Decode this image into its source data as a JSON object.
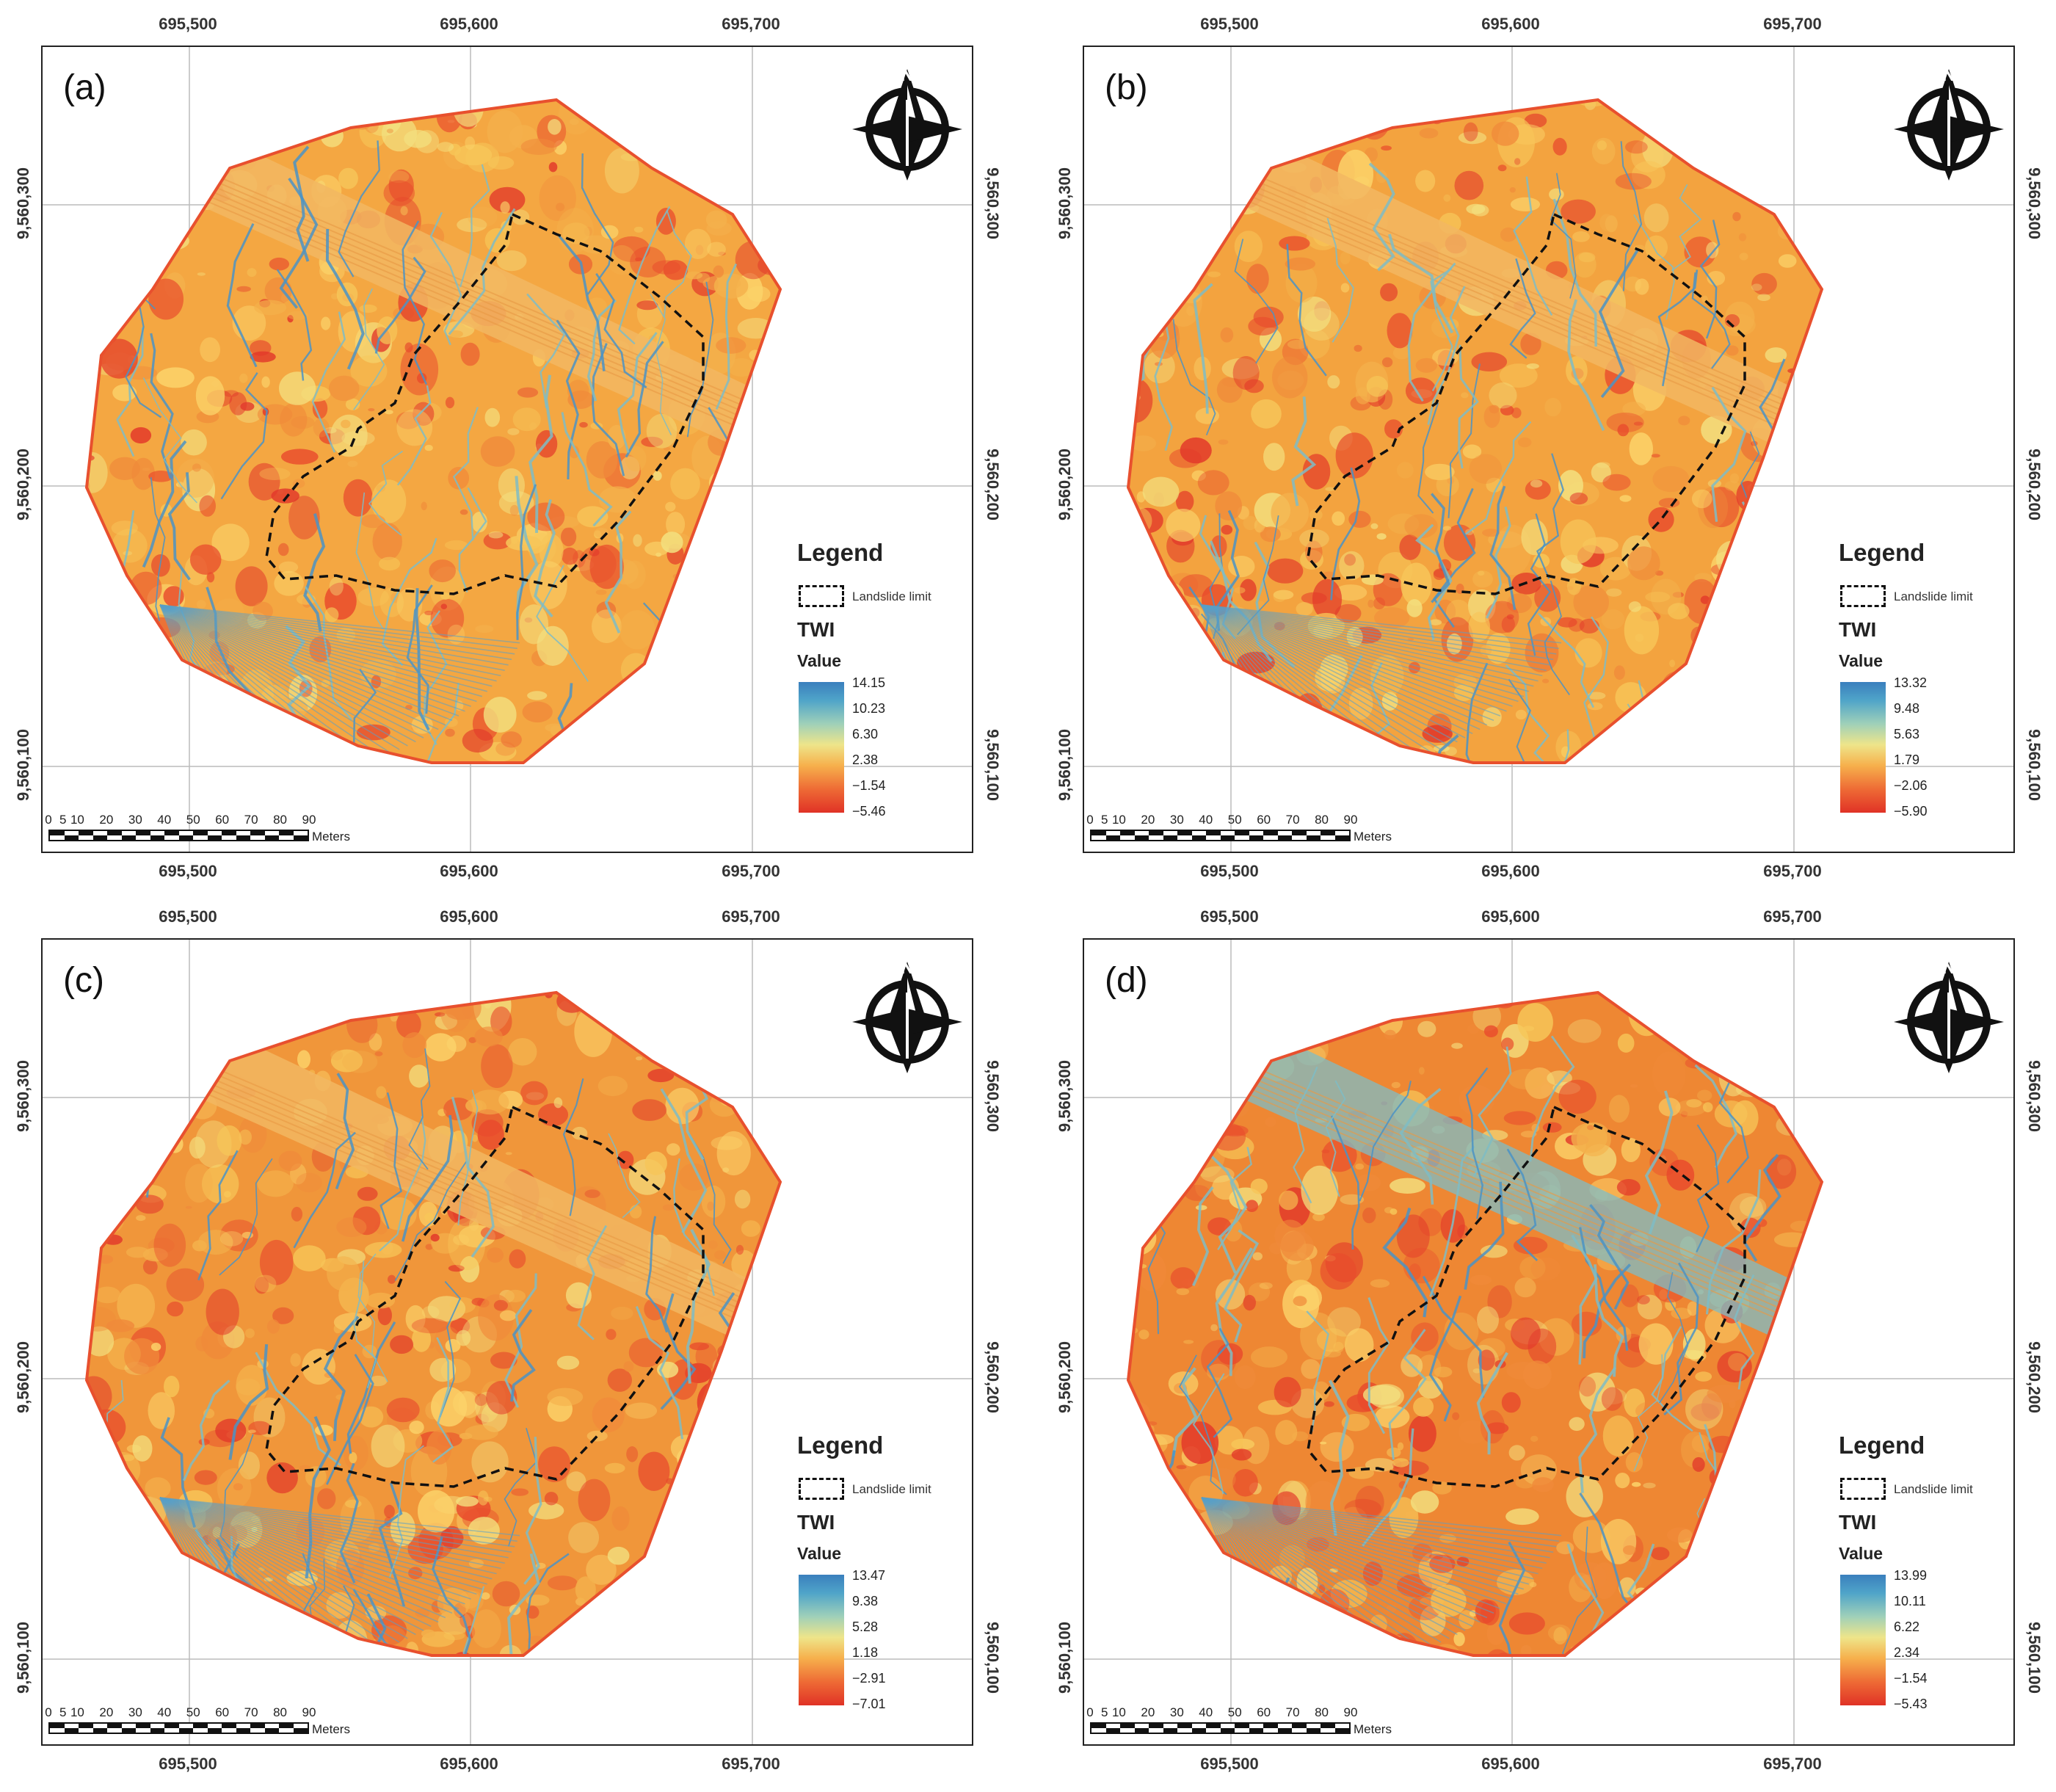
{
  "x_ticks": [
    "695,500",
    "695,600",
    "695,700"
  ],
  "y_ticks": [
    "9,560,300",
    "9,560,200",
    "9,560,100"
  ],
  "legend": {
    "title": "Legend",
    "landslide_label": "Landslide limit",
    "index_label": "TWI",
    "value_label": "Value"
  },
  "scale": {
    "labels": [
      "0",
      "5",
      "10",
      "20",
      "30",
      "40",
      "50",
      "60",
      "70",
      "80",
      "90"
    ],
    "unit": "Meters"
  },
  "north_arrow": {
    "letter": "N",
    "icon": "north-arrow-icon"
  },
  "colors": {
    "high": "#3a7fbd",
    "mid": "#eee58a",
    "low": "#e03226"
  },
  "panels": [
    {
      "label": "(a)",
      "values": [
        "14.15",
        "10.23",
        "6.30",
        "2.38",
        "−1.54",
        "−5.46"
      ]
    },
    {
      "label": "(b)",
      "values": [
        "13.32",
        "9.48",
        "5.63",
        "1.79",
        "−2.06",
        "−5.90"
      ]
    },
    {
      "label": "(c)",
      "values": [
        "13.47",
        "9.38",
        "5.28",
        "1.18",
        "−2.91",
        "−7.01"
      ]
    },
    {
      "label": "(d)",
      "values": [
        "13.99",
        "10.11",
        "6.22",
        "2.34",
        "−1.54",
        "−5.43"
      ]
    }
  ]
}
